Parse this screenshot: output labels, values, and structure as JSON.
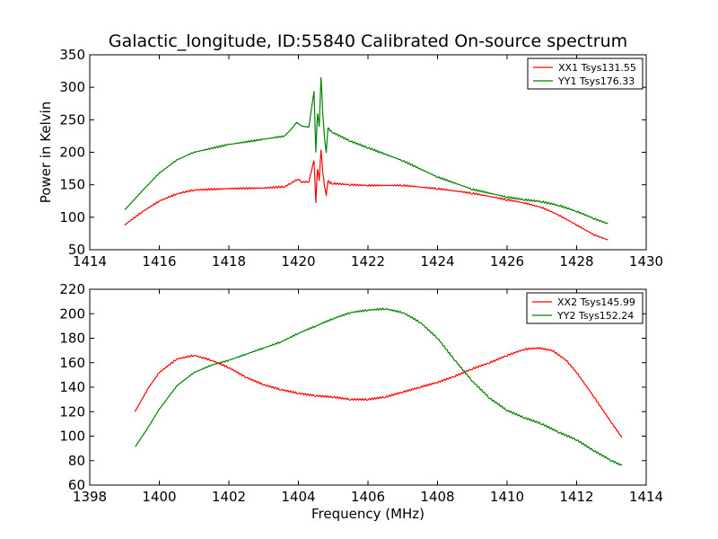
{
  "title": "Galactic_longitude, ID:55840 Calibrated On-source spectrum",
  "chart_data": [
    {
      "type": "line",
      "ylabel": "Power in Kelvin",
      "xlabel": "",
      "xlim": [
        1414,
        1430
      ],
      "ylim": [
        50,
        350
      ],
      "xticks": [
        "1414",
        "1416",
        "1418",
        "1420",
        "1422",
        "1424",
        "1426",
        "1428",
        "1430"
      ],
      "yticks": [
        "50",
        "100",
        "150",
        "200",
        "250",
        "300",
        "350"
      ],
      "legend_position": "top-right",
      "series": [
        {
          "name": "XX1 Tsys131.55",
          "color": "#ff0000",
          "x": [
            1415.0,
            1415.5,
            1416.0,
            1416.5,
            1417.0,
            1418.0,
            1419.0,
            1419.6,
            1419.8,
            1420.0,
            1420.1,
            1420.3,
            1420.45,
            1420.5,
            1420.55,
            1420.6,
            1420.65,
            1420.7,
            1420.75,
            1420.8,
            1420.85,
            1420.9,
            1421.0,
            1421.5,
            1422.0,
            1423.0,
            1424.0,
            1425.0,
            1426.0,
            1426.5,
            1427.0,
            1427.5,
            1428.0,
            1428.5,
            1428.9
          ],
          "values": [
            88,
            108,
            125,
            136,
            142,
            144,
            145,
            147,
            153,
            159,
            154,
            155,
            188,
            123,
            175,
            157,
            205,
            170,
            148,
            134,
            157,
            153,
            152,
            150,
            149,
            149,
            144,
            137,
            127,
            122,
            115,
            103,
            88,
            73,
            65
          ]
        },
        {
          "name": "YY1 Tsys176.33",
          "color": "#008000",
          "x": [
            1415.0,
            1415.5,
            1416.0,
            1416.5,
            1417.0,
            1418.0,
            1419.0,
            1419.6,
            1419.8,
            1419.95,
            1420.1,
            1420.3,
            1420.45,
            1420.5,
            1420.55,
            1420.6,
            1420.65,
            1420.7,
            1420.75,
            1420.8,
            1420.85,
            1420.9,
            1421.0,
            1421.5,
            1422.0,
            1423.0,
            1424.0,
            1425.0,
            1426.0,
            1426.5,
            1427.0,
            1427.5,
            1428.0,
            1428.5,
            1428.9
          ],
          "values": [
            111,
            140,
            168,
            188,
            200,
            212,
            220,
            225,
            236,
            246,
            240,
            239,
            294,
            200,
            260,
            240,
            316,
            260,
            222,
            200,
            238,
            234,
            230,
            217,
            207,
            187,
            162,
            143,
            131,
            127,
            124,
            118,
            109,
            98,
            90
          ]
        }
      ]
    },
    {
      "type": "line",
      "ylabel": "",
      "xlabel": "Frequency (MHz)",
      "xlim": [
        1398,
        1414
      ],
      "ylim": [
        60,
        220
      ],
      "xticks": [
        "1398",
        "1400",
        "1402",
        "1404",
        "1406",
        "1408",
        "1410",
        "1412",
        "1414"
      ],
      "yticks": [
        "60",
        "80",
        "100",
        "120",
        "140",
        "160",
        "180",
        "200",
        "220"
      ],
      "legend_position": "top-right",
      "series": [
        {
          "name": "XX2 Tsys145.99",
          "color": "#ff0000",
          "x": [
            1399.3,
            1399.7,
            1400.0,
            1400.5,
            1401.0,
            1401.5,
            1402.0,
            1402.5,
            1403.0,
            1403.5,
            1404.0,
            1404.5,
            1405.0,
            1405.5,
            1406.0,
            1406.5,
            1407.0,
            1407.5,
            1408.0,
            1408.5,
            1409.0,
            1409.5,
            1410.0,
            1410.5,
            1410.9,
            1411.3,
            1411.7,
            1412.0,
            1412.5,
            1413.0,
            1413.3
          ],
          "values": [
            120,
            140,
            152,
            163,
            166,
            162,
            156,
            148,
            142,
            138,
            135,
            133,
            132,
            130,
            130,
            132,
            136,
            140,
            144,
            149,
            155,
            160,
            166,
            171,
            172,
            170,
            162,
            152,
            132,
            111,
            99
          ]
        },
        {
          "name": "YY2 Tsys152.24",
          "color": "#008000",
          "x": [
            1399.3,
            1399.7,
            1400.0,
            1400.5,
            1401.0,
            1401.5,
            1402.0,
            1402.5,
            1403.0,
            1403.5,
            1404.0,
            1404.5,
            1405.0,
            1405.5,
            1406.0,
            1406.5,
            1407.0,
            1407.5,
            1408.0,
            1408.5,
            1409.0,
            1409.5,
            1410.0,
            1410.5,
            1411.0,
            1411.5,
            1412.0,
            1412.5,
            1413.0,
            1413.3
          ],
          "values": [
            91,
            108,
            122,
            141,
            152,
            158,
            162,
            167,
            172,
            177,
            184,
            190,
            196,
            201,
            203,
            204,
            201,
            193,
            180,
            162,
            145,
            131,
            121,
            115,
            110,
            103,
            97,
            88,
            80,
            76
          ]
        }
      ]
    }
  ]
}
